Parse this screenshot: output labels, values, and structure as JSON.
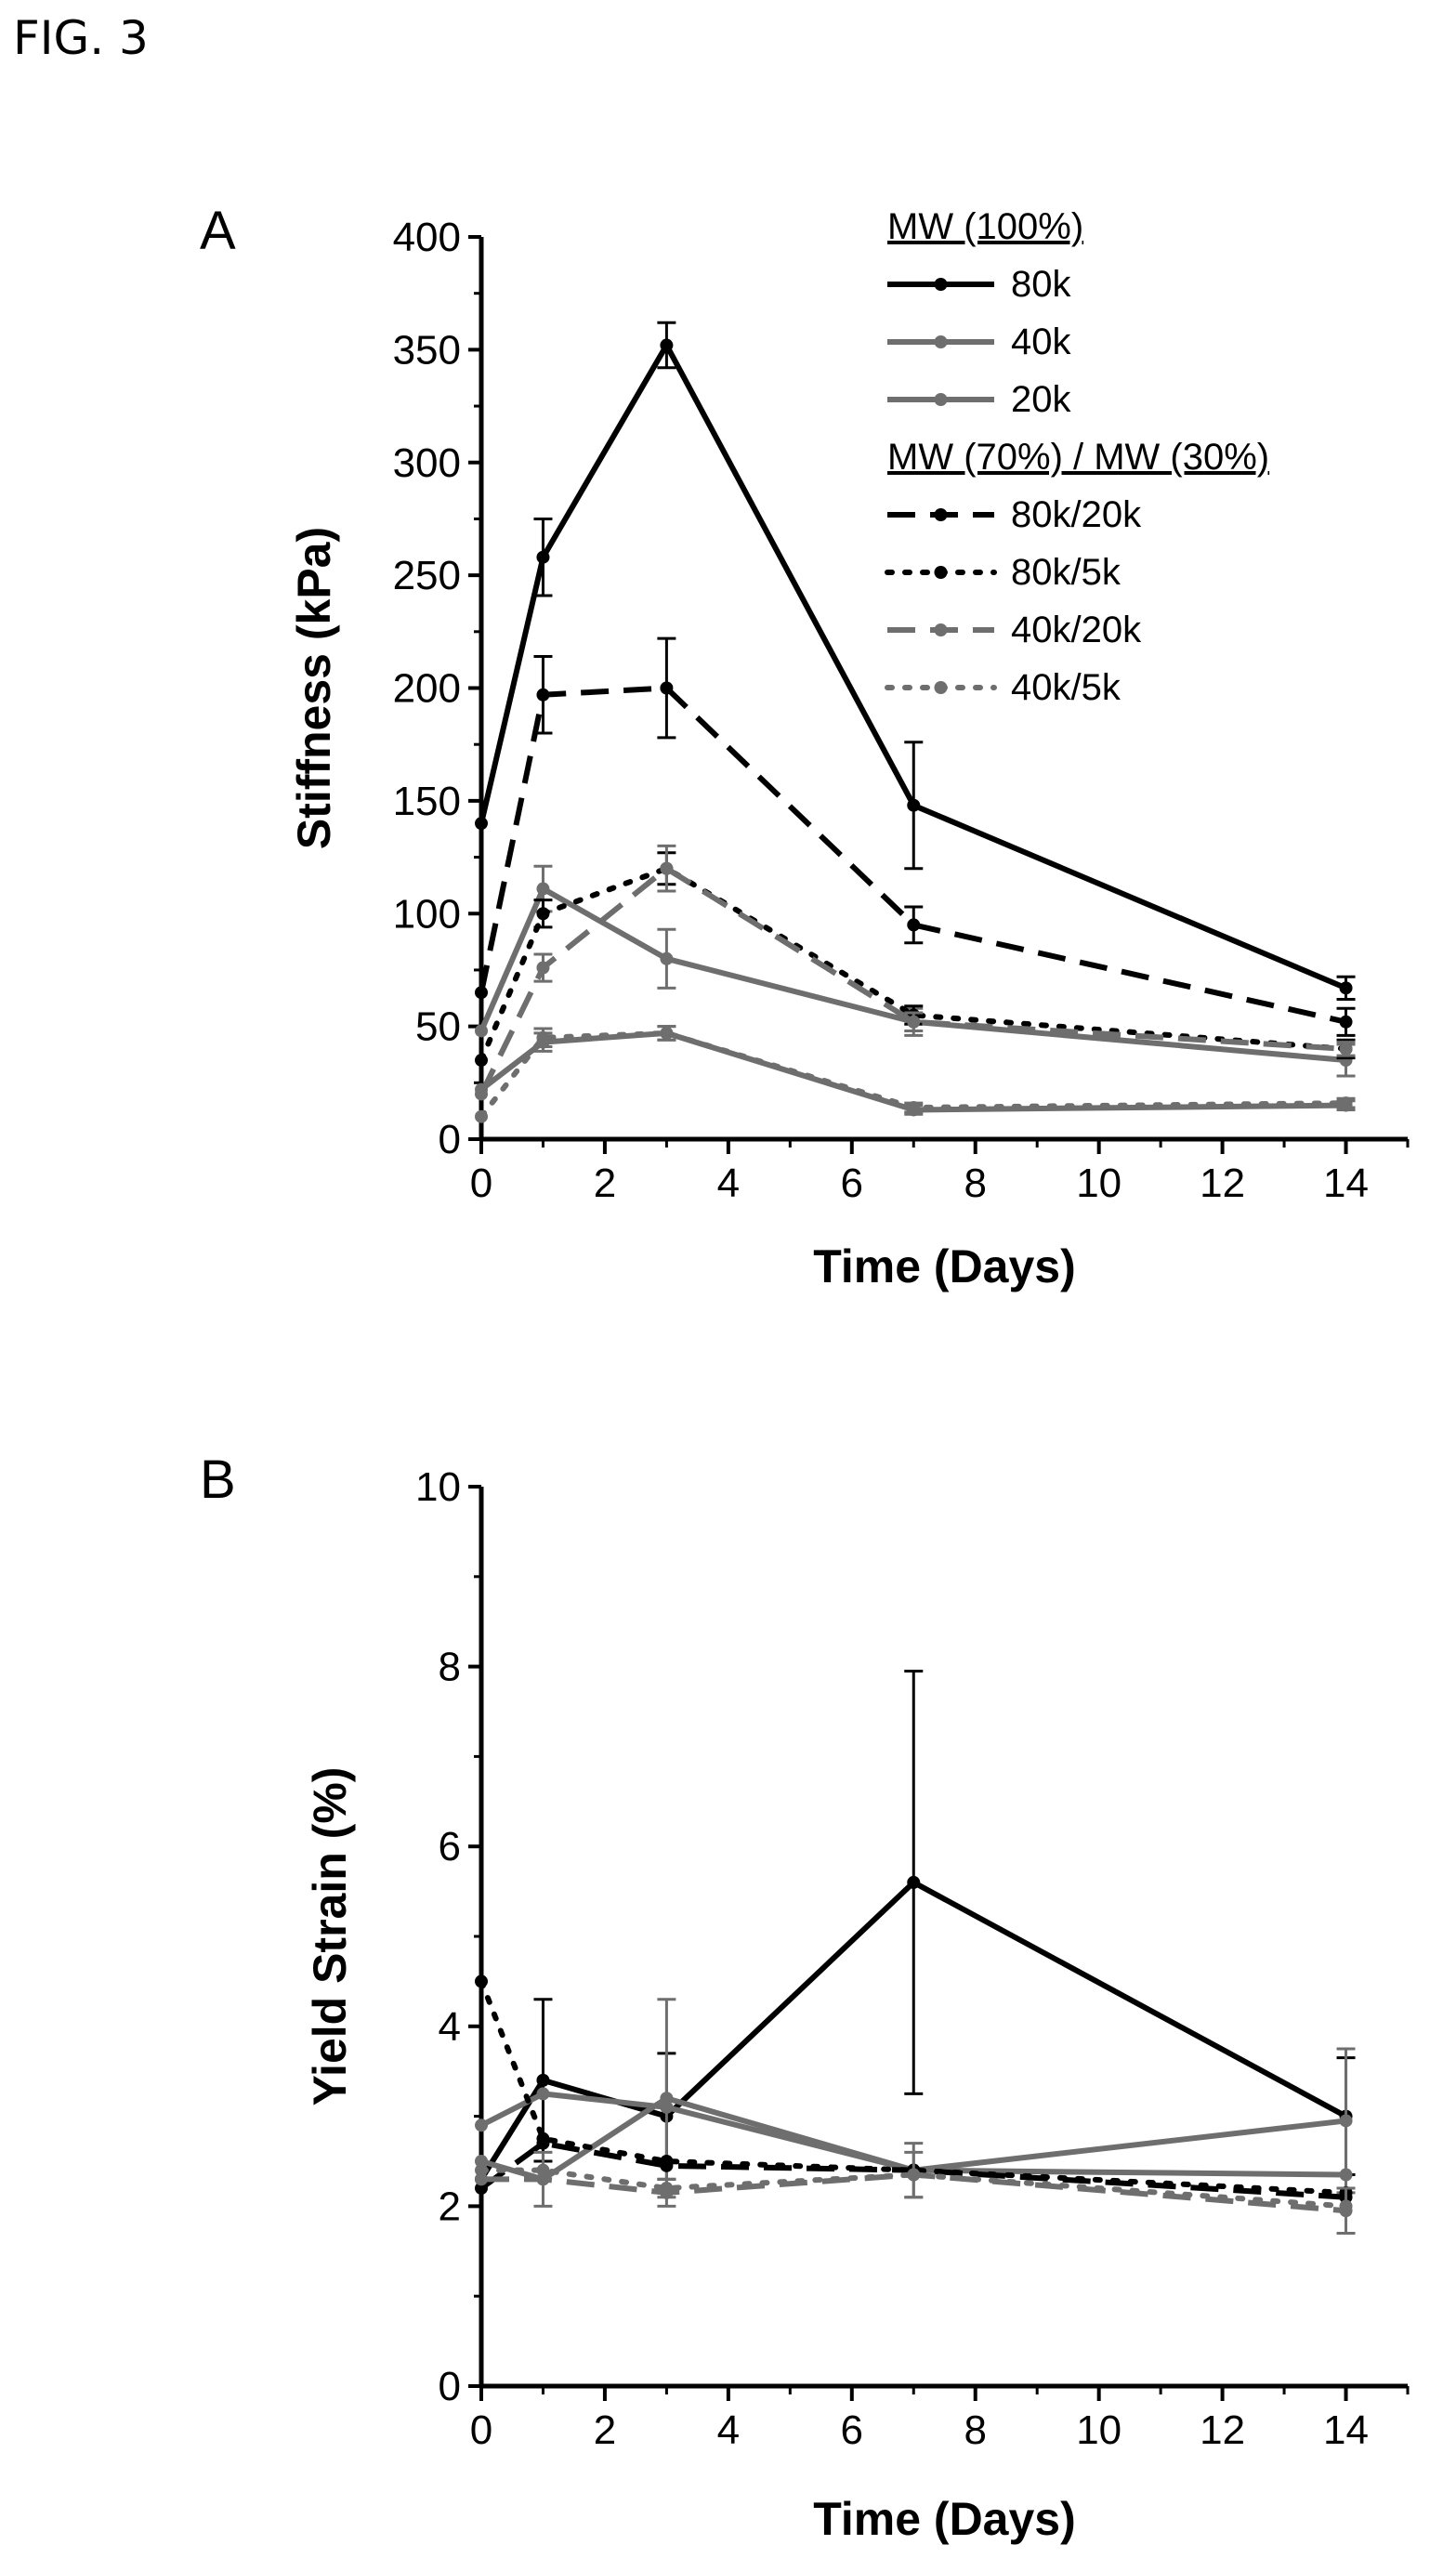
{
  "figure_label": "FIG. 3",
  "colors": {
    "black": "#000000",
    "gray": "#6e6e6e"
  },
  "chart_data": [
    {
      "panel": "A",
      "type": "line",
      "xlabel": "Time (Days)",
      "ylabel": "Stiffness (kPa)",
      "xlim": [
        0,
        15
      ],
      "ylim": [
        0,
        400
      ],
      "xticks": [
        "0",
        "2",
        "4",
        "6",
        "8",
        "10",
        "12",
        "14"
      ],
      "yticks": [
        "0",
        "50",
        "100",
        "150",
        "200",
        "250",
        "300",
        "350",
        "400"
      ],
      "legend_placement": "top-right",
      "legend_groups": [
        {
          "heading": "MW (100%)",
          "series": [
            "80k",
            "40k",
            "20k"
          ]
        },
        {
          "heading": "MW (70%) / MW (30%)",
          "series": [
            "80k/20k",
            "80k/5k",
            "40k/20k",
            "40k/5k"
          ]
        }
      ],
      "series": [
        {
          "name": "80k",
          "color": "#000000",
          "dash": "solid",
          "x": [
            0,
            1,
            3,
            7,
            14
          ],
          "y": [
            140,
            258,
            352,
            148,
            67
          ],
          "err": [
            0,
            17,
            10,
            28,
            5
          ]
        },
        {
          "name": "40k",
          "color": "#6e6e6e",
          "dash": "solid",
          "x": [
            0,
            1,
            3,
            7,
            14
          ],
          "y": [
            48,
            111,
            80,
            52,
            35
          ],
          "err": [
            0,
            10,
            13,
            6,
            7
          ]
        },
        {
          "name": "20k",
          "color": "#6e6e6e",
          "dash": "solid",
          "x": [
            0,
            1,
            3,
            7,
            14
          ],
          "y": [
            22,
            43,
            47,
            13,
            15
          ],
          "err": [
            0,
            4,
            3,
            2,
            2
          ]
        },
        {
          "name": "80k/20k",
          "color": "#000000",
          "dash": "dashed",
          "x": [
            0,
            1,
            3,
            7,
            14
          ],
          "y": [
            65,
            197,
            200,
            95,
            52
          ],
          "err": [
            0,
            17,
            22,
            8,
            6
          ]
        },
        {
          "name": "80k/5k",
          "color": "#000000",
          "dash": "dotted",
          "x": [
            0,
            1,
            3,
            7,
            14
          ],
          "y": [
            35,
            100,
            120,
            55,
            40
          ],
          "err": [
            0,
            6,
            7,
            4,
            4
          ]
        },
        {
          "name": "40k/20k",
          "color": "#6e6e6e",
          "dash": "dashed",
          "x": [
            0,
            1,
            3,
            7,
            14
          ],
          "y": [
            20,
            76,
            120,
            52,
            40
          ],
          "err": [
            0,
            6,
            10,
            4,
            3
          ]
        },
        {
          "name": "40k/5k",
          "color": "#6e6e6e",
          "dash": "dotted",
          "x": [
            0,
            1,
            3,
            7,
            14
          ],
          "y": [
            10,
            45,
            47,
            14,
            16
          ],
          "err": [
            0,
            4,
            3,
            2,
            2
          ]
        }
      ]
    },
    {
      "panel": "B",
      "type": "line",
      "xlabel": "Time (Days)",
      "ylabel": "Yield Strain (%)",
      "xlim": [
        0,
        15
      ],
      "ylim": [
        0,
        10
      ],
      "xticks": [
        "0",
        "2",
        "4",
        "6",
        "8",
        "10",
        "12",
        "14"
      ],
      "yticks": [
        "0",
        "2",
        "4",
        "6",
        "8",
        "10"
      ],
      "series": [
        {
          "name": "80k",
          "color": "#000000",
          "dash": "solid",
          "x": [
            0,
            1,
            3,
            7,
            14
          ],
          "y": [
            2.3,
            3.4,
            3.0,
            5.6,
            3.0
          ],
          "err": [
            0,
            0.9,
            0.7,
            2.35,
            0.65
          ]
        },
        {
          "name": "40k",
          "color": "#6e6e6e",
          "dash": "solid",
          "x": [
            0,
            1,
            3,
            7,
            14
          ],
          "y": [
            2.9,
            3.25,
            3.1,
            2.4,
            2.95
          ],
          "err": [
            0,
            0,
            0,
            0,
            0.8
          ]
        },
        {
          "name": "20k",
          "color": "#6e6e6e",
          "dash": "solid",
          "x": [
            0,
            1,
            3,
            7,
            14
          ],
          "y": [
            2.5,
            2.3,
            3.2,
            2.4,
            2.35
          ],
          "err": [
            0,
            0,
            1.1,
            0.3,
            0
          ]
        },
        {
          "name": "80k/20k",
          "color": "#000000",
          "dash": "dashed",
          "x": [
            0,
            1,
            3,
            7,
            14
          ],
          "y": [
            2.2,
            2.7,
            2.45,
            2.4,
            2.1
          ],
          "err": [
            0,
            0,
            0,
            0,
            0
          ]
        },
        {
          "name": "80k/5k",
          "color": "#000000",
          "dash": "dotted",
          "x": [
            0,
            1,
            3,
            7,
            14
          ],
          "y": [
            4.5,
            2.75,
            2.5,
            2.4,
            2.15
          ],
          "err": [
            0,
            0,
            0,
            0,
            0
          ]
        },
        {
          "name": "40k/20k",
          "color": "#6e6e6e",
          "dash": "dashed",
          "x": [
            0,
            1,
            3,
            7,
            14
          ],
          "y": [
            2.3,
            2.3,
            2.15,
            2.35,
            1.95
          ],
          "err": [
            0,
            0.3,
            0.15,
            0.25,
            0.25
          ]
        },
        {
          "name": "40k/5k",
          "color": "#6e6e6e",
          "dash": "dotted",
          "x": [
            0,
            1,
            3,
            7,
            14
          ],
          "y": [
            2.4,
            2.4,
            2.2,
            2.35,
            2.0
          ],
          "err": [
            0,
            0,
            0,
            0,
            0
          ]
        }
      ]
    }
  ]
}
